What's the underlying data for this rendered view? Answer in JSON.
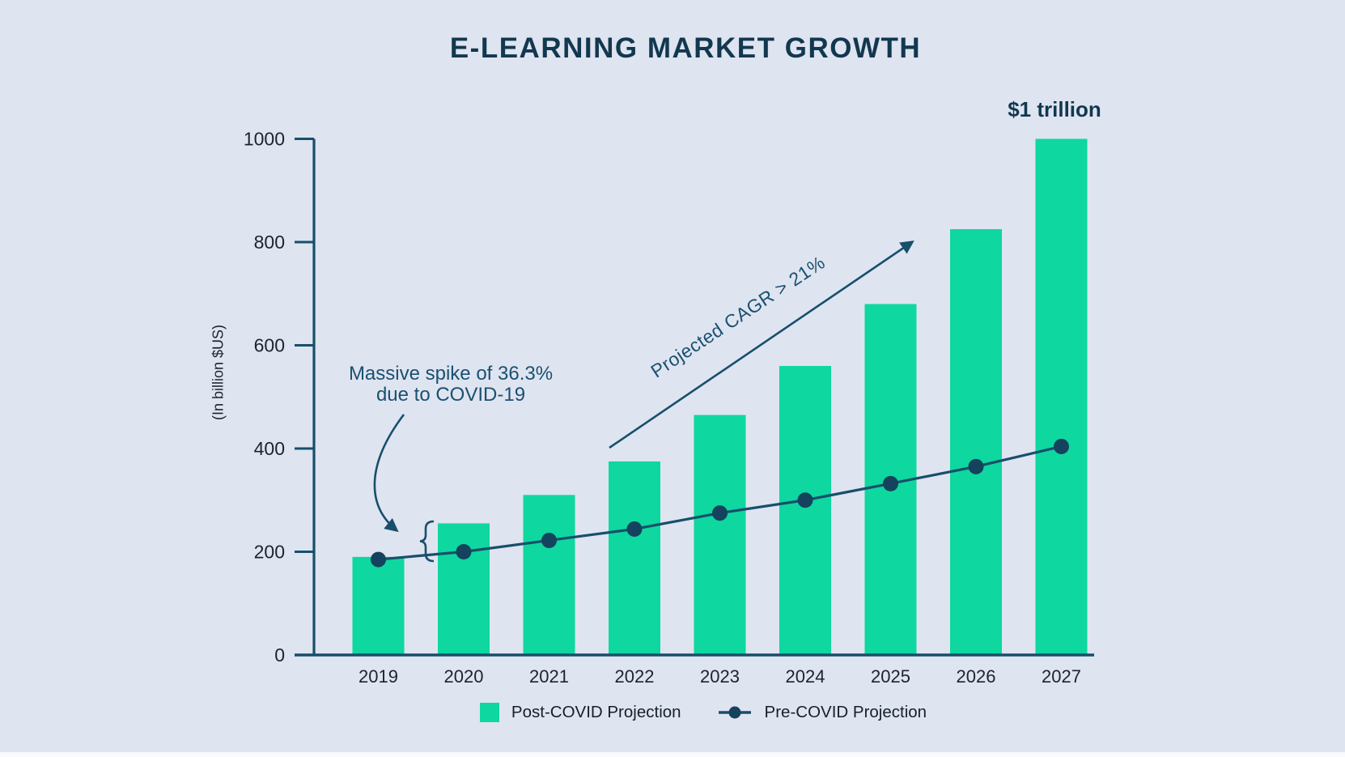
{
  "title": "E-LEARNING MARKET GROWTH",
  "colors": {
    "background": "#dfe4f1",
    "bar_green": "#0ed7a0",
    "line_navy": "#174f6b",
    "dot_navy": "#15425c",
    "title_navy": "#12384f",
    "annotation_navy": "#1a5170",
    "tick_label": "#1d232e"
  },
  "y_axis": {
    "label": "(In billion $US)",
    "ticks": [
      0,
      200,
      400,
      600,
      800,
      1000
    ]
  },
  "annotations": {
    "spike_line1": "Massive spike of 36.3%",
    "spike_line2": "due to COVID-19",
    "cagr": "Projected CAGR > 21%",
    "trillion": "$1 trillion",
    "brace": "{"
  },
  "legend": [
    {
      "label": "Post-COVID Projection",
      "icon": "green-square-swatch"
    },
    {
      "label": "Pre-COVID Projection",
      "icon": "line-with-dot"
    }
  ],
  "chart_data": {
    "type": "bar",
    "categories": [
      "2019",
      "2020",
      "2021",
      "2022",
      "2023",
      "2024",
      "2025",
      "2026",
      "2027"
    ],
    "series": [
      {
        "name": "Post-COVID Projection",
        "type": "bar",
        "values": [
          190,
          255,
          310,
          375,
          465,
          560,
          680,
          825,
          1000
        ]
      },
      {
        "name": "Pre-COVID Projection",
        "type": "line",
        "values": [
          185,
          200,
          222,
          244,
          275,
          300,
          332,
          365,
          404
        ]
      }
    ],
    "title": "E-LEARNING MARKET GROWTH",
    "xlabel": "",
    "ylabel": "(In billion $US)",
    "ylim": [
      0,
      1000
    ],
    "grid": false,
    "legend_position": "bottom"
  }
}
